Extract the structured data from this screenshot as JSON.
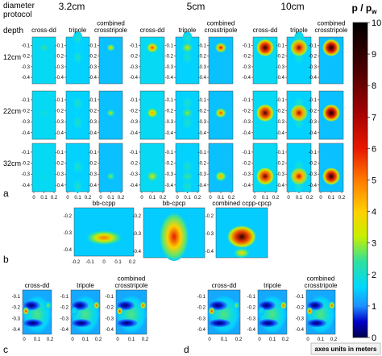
{
  "header": {
    "diameter": "diameter",
    "protocol": "protocol",
    "depth": "depth",
    "groups": [
      "3.2cm",
      "5cm",
      "10cm"
    ]
  },
  "columns": [
    "cross-dd",
    "tripole",
    "combined\ncrosstripole"
  ],
  "rows": [
    "12cm",
    "22cm",
    "32cm"
  ],
  "panels": {
    "a": "a",
    "b": "b",
    "c": "c",
    "d": "d"
  },
  "panel_b": {
    "titles": [
      "bb-ccpp",
      "bb-cpcp",
      "combined ccpp-cpcp"
    ]
  },
  "panel_cd": {
    "titles": [
      "cross-dd",
      "tripole",
      "combined\ncrosstripole"
    ]
  },
  "axes": {
    "grid_yticks": [
      "-0.1",
      "-0.2",
      "-0.3",
      "-0.4"
    ],
    "grid_xticks": [
      "0",
      "0.1",
      "0.2"
    ],
    "b_yticks": [
      "-0.2",
      "-0.3",
      "-0.4"
    ],
    "b_xticks": [
      "-0.2",
      "-0.1",
      "0",
      "0.1",
      "0.2"
    ],
    "units_note": "axes units in meters"
  },
  "colorbar": {
    "title": "p / p",
    "title_sub": "w",
    "ticks": [
      "0",
      "1",
      "2",
      "3",
      "4",
      "5",
      "6",
      "7",
      "8",
      "9",
      "10"
    ],
    "min": 0,
    "max": 10,
    "colormap": "jet (navy-blue-cyan-yellow-red-dark red-black)"
  },
  "chart_data": {
    "type": "heatmap",
    "title": "",
    "xlabel": "",
    "ylabel": "",
    "colorbar_range": [
      0,
      10
    ],
    "note": "axes units in meters",
    "grid_a": {
      "diameters": [
        "3.2cm",
        "5cm",
        "10cm"
      ],
      "depths": [
        "12cm",
        "22cm",
        "32cm"
      ],
      "protocols": [
        "cross-dd",
        "tripole",
        "combined crosstripole"
      ],
      "peak_depth_m": [
        -0.12,
        -0.22,
        -0.32
      ],
      "peak_value": [
        [
          [
            2.5,
            1.6,
            4
          ],
          [
            5.5,
            3.5,
            6.5
          ],
          [
            9,
            7.5,
            10
          ]
        ],
        [
          [
            2,
            1.6,
            3.5
          ],
          [
            4.5,
            3,
            5.5
          ],
          [
            8.5,
            7,
            10
          ]
        ],
        [
          [
            1.8,
            1.5,
            3
          ],
          [
            3.5,
            2.5,
            4.5
          ],
          [
            8,
            6.5,
            9.5
          ]
        ]
      ]
    },
    "panel_b": {
      "maps": [
        "bb-ccpp",
        "bb-cpcp",
        "combined ccpp-cpcp"
      ],
      "peak_depth_m": [
        -0.3,
        -0.27,
        -0.28
      ],
      "peak_value": [
        5,
        6,
        9
      ]
    },
    "panel_c": {
      "maps": [
        "cross-dd",
        "tripole",
        "combined crosstripole"
      ]
    },
    "panel_d": {
      "maps": [
        "cross-dd",
        "tripole",
        "combined crosstripole"
      ]
    }
  }
}
